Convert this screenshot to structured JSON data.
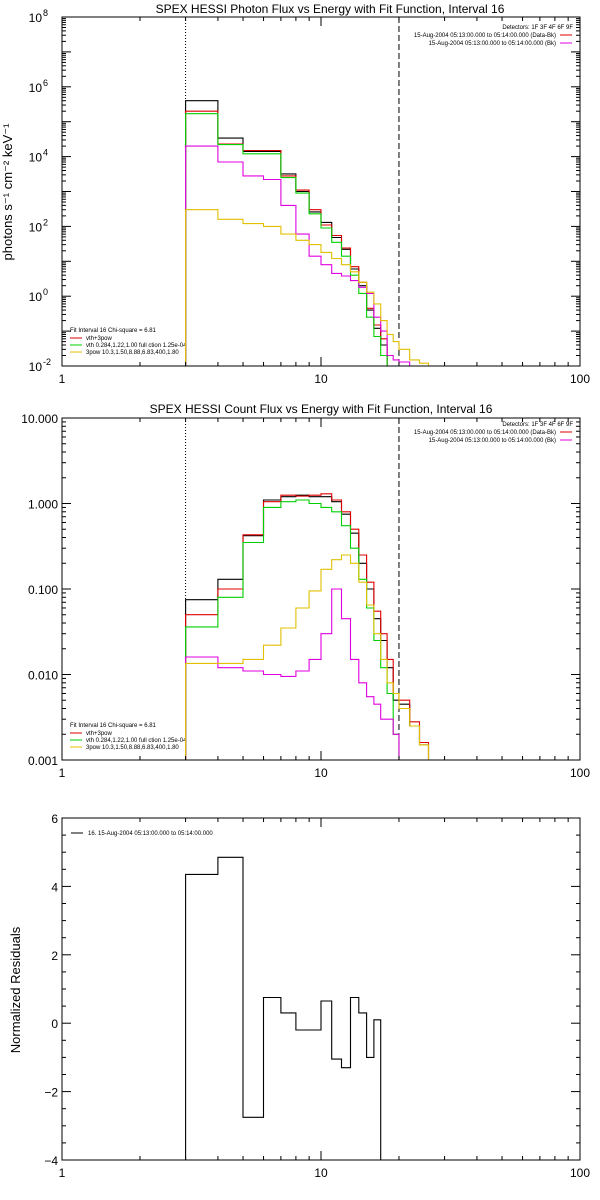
{
  "chart_data": [
    {
      "type": "line",
      "title": "SPEX HESSI Photon Flux vs Energy with Fit Function, Interval 16",
      "ylabel": "photons s⁻¹ cm⁻² keV⁻¹",
      "xlabel": "",
      "xscale": "log",
      "yscale": "log",
      "xlim": [
        1,
        100
      ],
      "ylim": [
        0.01,
        100000000
      ],
      "xticks": [
        "1",
        "10",
        "100"
      ],
      "yticks": [
        {
          "value": 0.01,
          "label": "10",
          "sup": "-2"
        },
        {
          "value": 1,
          "label": "10",
          "sup": "0"
        },
        {
          "value": 100,
          "label": "10",
          "sup": "2"
        },
        {
          "value": 10000,
          "label": "10",
          "sup": "4"
        },
        {
          "value": 1000000,
          "label": "10",
          "sup": "6"
        },
        {
          "value": 100000000,
          "label": "10",
          "sup": "8"
        }
      ],
      "header_lines": [
        "Detectors: 1F 3F 4F 6F 9F",
        "15-Aug-2004 05:13:00.000 to 05:14:00.000 (Data-Bk)",
        "15-Aug-2004 05:13:00.000 to 05:14:00.000 (Bk)"
      ],
      "fit_legend": {
        "title": "Fit Interval 16   Chi-square = 6.81",
        "entries": [
          "vth+3pow",
          "vth 0.284,1.22,1.00  full ction 1.25e-04",
          "3pow 10.3,1.50,8.88,6.83,400,1.80"
        ]
      },
      "vlines": [
        {
          "x": 3,
          "style": "dotted"
        },
        {
          "x": 20,
          "style": "dashed"
        }
      ],
      "bin_edges": [
        3,
        4,
        5,
        6,
        7,
        8,
        9,
        10,
        11,
        12,
        13,
        14,
        15,
        16,
        17,
        18,
        19,
        20,
        22,
        24,
        26
      ],
      "series": [
        {
          "color": "#000000",
          "values": [
            400000,
            34000,
            14000,
            14000,
            3200,
            1000,
            260,
            130,
            48,
            22,
            6,
            2,
            0.4,
            0.12,
            0.04,
            null,
            null,
            null,
            null,
            null
          ]
        },
        {
          "color": "#e00000",
          "values": [
            200000,
            23000,
            15000,
            15000,
            2800,
            1100,
            300,
            110,
            55,
            24,
            7,
            2.5,
            0.45,
            0.15,
            0.06,
            null,
            null,
            null,
            null,
            null
          ]
        },
        {
          "color": "#00d000",
          "values": [
            170000,
            22000,
            12000,
            12000,
            2500,
            900,
            230,
            90,
            35,
            14,
            4,
            1.2,
            0.25,
            0.07,
            0.02,
            null,
            null,
            null,
            null,
            null
          ]
        },
        {
          "color": "#e000e0",
          "values": [
            20000,
            7000,
            2800,
            2200,
            400,
            60,
            14,
            8,
            4.5,
            3.8,
            2.8,
            1.8,
            1.2,
            0.25,
            0.1,
            0.02,
            0.015,
            0.013,
            null,
            null
          ]
        },
        {
          "color": "#e0c000",
          "values": [
            300,
            160,
            120,
            100,
            60,
            40,
            30,
            18,
            12,
            8,
            5,
            2.5,
            1.3,
            0.6,
            0.2,
            0.08,
            0.05,
            0.03,
            0.015,
            0.012
          ]
        }
      ]
    },
    {
      "type": "line",
      "title": "SPEX HESSI Count Flux vs Energy with Fit Function, Interval 16",
      "ylabel": "",
      "xlabel": "",
      "xscale": "log",
      "yscale": "log",
      "xlim": [
        1,
        100
      ],
      "ylim": [
        0.001,
        10
      ],
      "xticks": [
        "1",
        "10",
        "100"
      ],
      "yticks": [
        {
          "value": 0.001,
          "label": "0.001"
        },
        {
          "value": 0.01,
          "label": "0.010"
        },
        {
          "value": 0.1,
          "label": "0.100"
        },
        {
          "value": 1,
          "label": "1.000"
        },
        {
          "value": 10,
          "label": "10.000"
        }
      ],
      "header_lines": [
        "Detectors: 1F 3F 4F 6F 9F",
        "15-Aug-2004 05:13:00.000 to 05:14:00.000 (Data-Bk)",
        "15-Aug-2004 05:13:00.000 to 05:14:00.000 (Bk)"
      ],
      "fit_legend": {
        "title": "Fit Interval 16   Chi-square = 6.81",
        "entries": [
          "vth+3pow",
          "vth 0.284,1.22,1.00  full ction 1.25e-04",
          "3pow 10.3,1.50,8.88,6.83,400,1.80"
        ]
      },
      "vlines": [
        {
          "x": 3,
          "style": "dotted"
        },
        {
          "x": 20,
          "style": "dashed"
        }
      ],
      "bin_edges": [
        3,
        4,
        5,
        6,
        7,
        8,
        9,
        10,
        11,
        12,
        13,
        14,
        15,
        16,
        17,
        18,
        19,
        20,
        22,
        24,
        26
      ],
      "series": [
        {
          "color": "#000000",
          "values": [
            0.075,
            0.13,
            0.42,
            1.1,
            1.2,
            1.25,
            1.2,
            1.2,
            1.05,
            0.75,
            0.45,
            0.2,
            0.1,
            0.045,
            0.025,
            0.012,
            0.005,
            0.0045,
            0.0025,
            0.0015
          ]
        },
        {
          "color": "#e00000",
          "values": [
            0.05,
            0.1,
            0.43,
            1.05,
            1.25,
            1.22,
            1.25,
            1.3,
            1.1,
            0.8,
            0.5,
            0.25,
            0.12,
            0.055,
            0.03,
            0.015,
            0.006,
            0.005,
            0.0028,
            0.0016
          ]
        },
        {
          "color": "#00d000",
          "values": [
            0.036,
            0.08,
            0.35,
            0.9,
            1.05,
            1.1,
            1.0,
            0.9,
            0.8,
            0.55,
            0.3,
            0.13,
            0.06,
            0.025,
            0.012,
            0.006,
            0.002,
            null,
            null,
            null
          ]
        },
        {
          "color": "#e000e0",
          "values": [
            0.016,
            0.012,
            0.011,
            0.01,
            0.0095,
            0.011,
            0.015,
            0.03,
            0.1,
            0.045,
            0.015,
            0.008,
            0.0055,
            0.0045,
            0.003,
            0.003,
            0.002,
            null,
            null,
            null
          ]
        },
        {
          "color": "#e0c000",
          "values": [
            0.0135,
            0.0135,
            0.015,
            0.022,
            0.035,
            0.06,
            0.095,
            0.17,
            0.22,
            0.25,
            0.2,
            0.12,
            0.065,
            0.03,
            0.015,
            0.008,
            0.006,
            0.004,
            0.0025,
            0.0015
          ]
        }
      ]
    },
    {
      "type": "line",
      "title": "",
      "ylabel": "Normalized Residuals",
      "xlabel": "",
      "xscale": "log",
      "yscale": "linear",
      "xlim": [
        1,
        100
      ],
      "ylim": [
        -4,
        6
      ],
      "xticks": [
        "1",
        "10",
        "100"
      ],
      "yticks": [
        {
          "value": -4,
          "label": "−4"
        },
        {
          "value": -2,
          "label": "−2"
        },
        {
          "value": 0,
          "label": "0"
        },
        {
          "value": 2,
          "label": "2"
        },
        {
          "value": 4,
          "label": "4"
        },
        {
          "value": 6,
          "label": "6"
        }
      ],
      "legend": "16. 15-Aug-2004 05:13:00.000 to 05:14:00.000",
      "bin_edges": [
        3,
        4,
        5,
        6,
        7,
        8,
        9,
        10,
        11,
        12,
        13,
        14,
        15,
        16,
        17,
        18,
        19,
        20
      ],
      "series": [
        {
          "color": "#000000",
          "values": [
            4.35,
            4.85,
            -2.75,
            0.75,
            0.3,
            -0.2,
            -0.2,
            0.65,
            -1.05,
            -1.3,
            0.75,
            0.3,
            -1.0,
            0.1,
            null,
            null,
            null
          ]
        }
      ]
    }
  ]
}
